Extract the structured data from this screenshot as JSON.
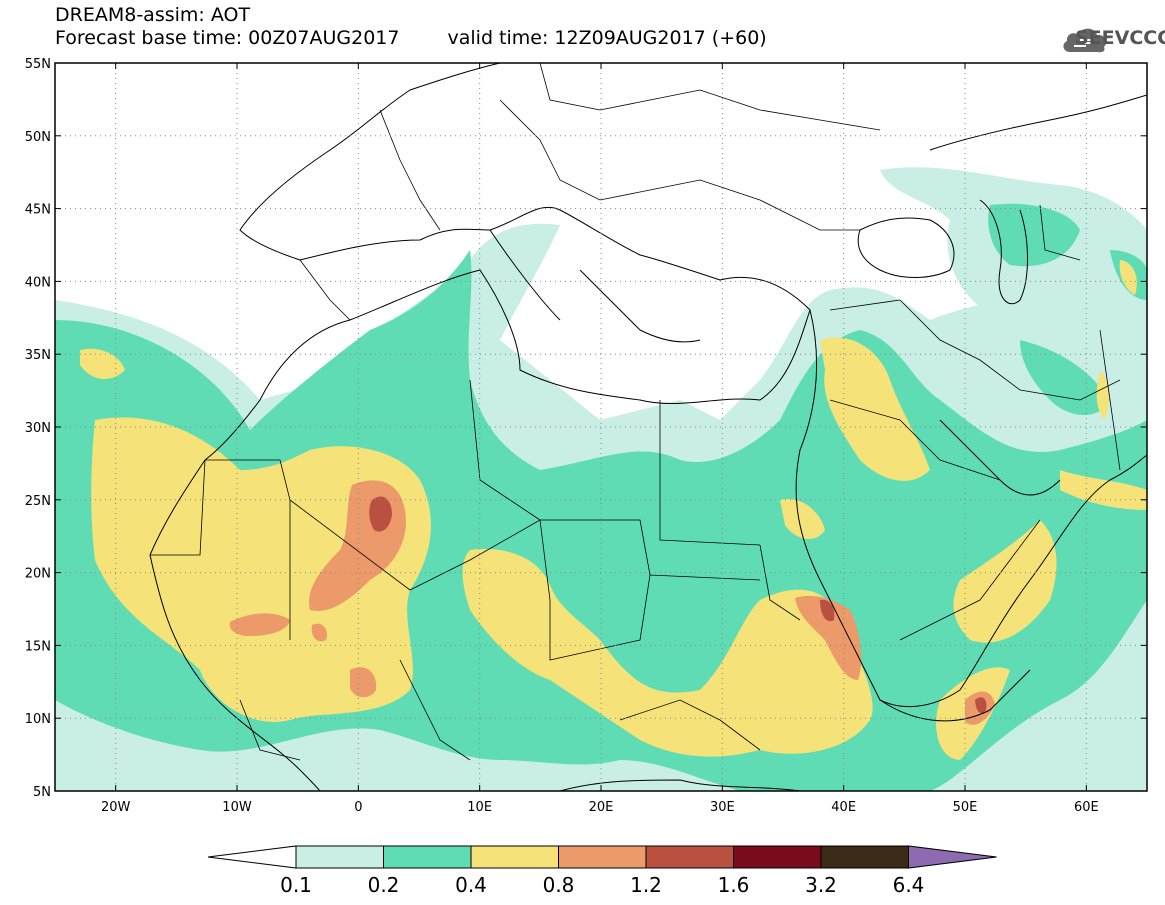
{
  "header": {
    "title_line1": "DREAM8-assim: AOT",
    "base_time": "Forecast base time: 00Z07AUG2017",
    "valid_time": "valid time: 12Z09AUG2017 (+60)",
    "logo_text": "SEEVCCC"
  },
  "map": {
    "lon_range": [
      -25,
      65
    ],
    "lat_range": [
      5,
      55
    ],
    "lat_labels": [
      "5N",
      "10N",
      "15N",
      "20N",
      "25N",
      "30N",
      "35N",
      "40N",
      "45N",
      "50N",
      "55N"
    ],
    "lat_values": [
      5,
      10,
      15,
      20,
      25,
      30,
      35,
      40,
      45,
      50,
      55
    ],
    "lon_labels": [
      "20W",
      "10W",
      "0",
      "10E",
      "20E",
      "30E",
      "40E",
      "50E",
      "60E"
    ],
    "lon_values": [
      -20,
      -10,
      0,
      10,
      20,
      30,
      40,
      50,
      60
    ]
  },
  "colorbar": {
    "labels": [
      "0.1",
      "0.2",
      "0.4",
      "0.8",
      "1.2",
      "1.6",
      "3.2",
      "6.4"
    ],
    "colors": [
      "#ffffff",
      "#c8eee6",
      "#5fdcb4",
      "#f5e37a",
      "#ec9a6a",
      "#b95040",
      "#7a0a1e",
      "#3c2a18",
      "#8e6ab0"
    ],
    "color_names": [
      "below-0.1",
      "0.1-0.2",
      "0.2-0.4",
      "0.4-0.8",
      "0.8-1.2",
      "1.2-1.6",
      "1.6-3.2",
      "3.2-6.4",
      "above-6.4"
    ]
  }
}
